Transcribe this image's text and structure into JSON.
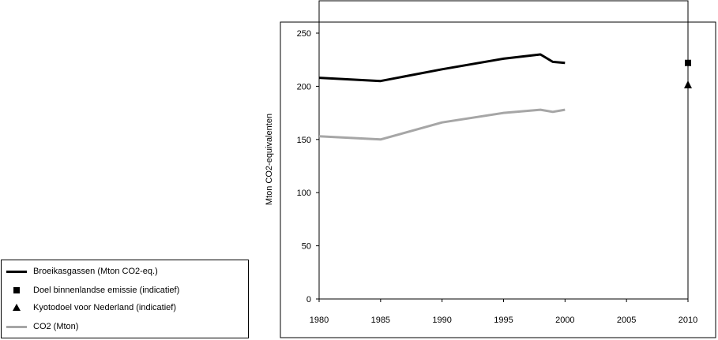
{
  "chart_data": {
    "type": "line",
    "title": "",
    "xlabel": "",
    "ylabel": "Mton CO2-equivalenten",
    "xlim": [
      1980,
      2010
    ],
    "ylim": [
      0,
      250
    ],
    "x_ticks": [
      1980,
      1985,
      1990,
      1995,
      2000,
      2005,
      2010
    ],
    "y_ticks": [
      0,
      50,
      100,
      150,
      200,
      250
    ],
    "grid": false,
    "legend_position": "bottom-left",
    "series": [
      {
        "name": "Broeikasgassen (Mton CO2-eq.)",
        "kind": "line",
        "color": "#000000",
        "x": [
          1980,
          1985,
          1990,
          1995,
          1998,
          1999,
          2000
        ],
        "y": [
          208,
          205,
          216,
          226,
          230,
          223,
          222
        ]
      },
      {
        "name": "Doel binnenlandse emissie (indicatief)",
        "kind": "marker",
        "marker": "square",
        "color": "#000000",
        "x": [
          2010
        ],
        "y": [
          222
        ]
      },
      {
        "name": "Kyotodoel voor Nederland (indicatief)",
        "kind": "marker",
        "marker": "triangle",
        "color": "#000000",
        "x": [
          2010
        ],
        "y": [
          201
        ]
      },
      {
        "name": "CO2 (Mton)",
        "kind": "line",
        "color": "#a6a6a6",
        "x": [
          1980,
          1985,
          1990,
          1995,
          1998,
          1999,
          2000
        ],
        "y": [
          153,
          150,
          166,
          175,
          178,
          176,
          178
        ]
      }
    ]
  }
}
